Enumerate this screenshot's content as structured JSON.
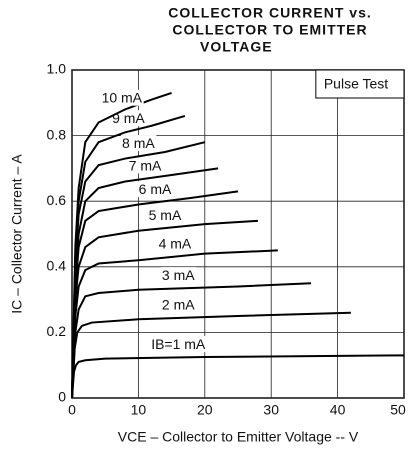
{
  "chart_data": {
    "type": "line",
    "title": [
      "COLLECTOR CURRENT vs.",
      "COLLECTOR TO EMITTER",
      "VOLTAGE"
    ],
    "xlabel": "VCE – Collector to Emitter Voltage -- V",
    "ylabel": "IC – Collector Current – A",
    "annotation": "Pulse Test",
    "xlim": [
      0,
      50
    ],
    "xticks": [
      0,
      10,
      20,
      30,
      40,
      50
    ],
    "ylim": [
      0,
      1
    ],
    "yticks": [
      0,
      0.2,
      0.4,
      0.6,
      0.8,
      {
        "value": 1,
        "label": "1.0"
      }
    ],
    "grid": true,
    "color": "#000000",
    "series": [
      {
        "name": "IB=1 mA",
        "x": [
          0,
          0.3,
          0.6,
          1,
          2,
          5,
          20,
          50
        ],
        "values": [
          0,
          0.08,
          0.1,
          0.11,
          0.115,
          0.12,
          0.125,
          0.13
        ]
      },
      {
        "name": "2 mA",
        "x": [
          0,
          0.4,
          0.8,
          1.5,
          3,
          10,
          25,
          42
        ],
        "values": [
          0,
          0.15,
          0.2,
          0.22,
          0.23,
          0.24,
          0.25,
          0.26
        ]
      },
      {
        "name": "3 mA",
        "x": [
          0,
          0.5,
          1,
          2,
          4,
          10,
          25,
          36
        ],
        "values": [
          0,
          0.2,
          0.27,
          0.31,
          0.32,
          0.33,
          0.34,
          0.35
        ]
      },
      {
        "name": "4 mA",
        "x": [
          0,
          0.5,
          1,
          2,
          4,
          10,
          20,
          31
        ],
        "values": [
          0,
          0.25,
          0.34,
          0.39,
          0.41,
          0.42,
          0.44,
          0.45
        ]
      },
      {
        "name": "5 mA",
        "x": [
          0,
          0.5,
          1,
          2,
          4,
          10,
          20,
          28
        ],
        "values": [
          0,
          0.3,
          0.4,
          0.46,
          0.49,
          0.51,
          0.53,
          0.54
        ]
      },
      {
        "name": "6 mA",
        "x": [
          0,
          0.5,
          1,
          2,
          4,
          10,
          18,
          25
        ],
        "values": [
          0,
          0.33,
          0.46,
          0.54,
          0.57,
          0.59,
          0.61,
          0.63
        ]
      },
      {
        "name": "7 mA",
        "x": [
          0,
          0.5,
          1,
          2,
          4,
          8,
          15,
          22
        ],
        "values": [
          0,
          0.36,
          0.5,
          0.6,
          0.64,
          0.66,
          0.68,
          0.7
        ]
      },
      {
        "name": "8 mA",
        "x": [
          0,
          0.5,
          1,
          2,
          4,
          8,
          14,
          20
        ],
        "values": [
          0,
          0.4,
          0.56,
          0.66,
          0.71,
          0.73,
          0.75,
          0.78
        ]
      },
      {
        "name": "9 mA",
        "x": [
          0,
          0.5,
          1,
          2,
          4,
          8,
          12,
          17
        ],
        "values": [
          0,
          0.43,
          0.6,
          0.72,
          0.78,
          0.81,
          0.83,
          0.86
        ]
      },
      {
        "name": "10 mA",
        "x": [
          0,
          0.5,
          1,
          2,
          4,
          8,
          12,
          15
        ],
        "values": [
          0,
          0.46,
          0.64,
          0.78,
          0.84,
          0.88,
          0.91,
          0.93
        ]
      }
    ]
  }
}
